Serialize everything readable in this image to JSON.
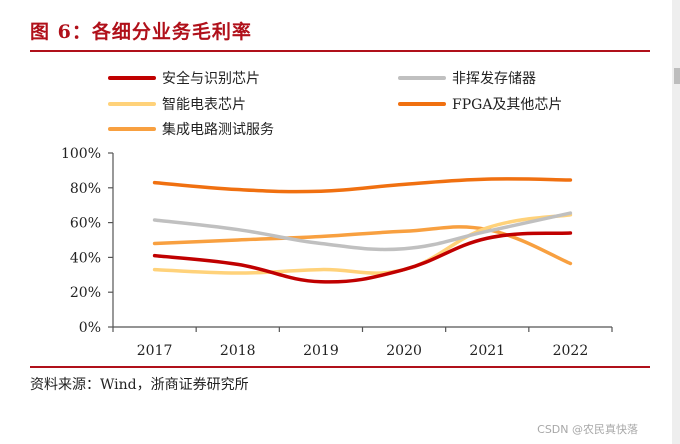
{
  "figure": {
    "title": "图 6：各细分业务毛利率",
    "source": "资料来源：Wind，浙商证券研究所",
    "watermark": "CSDN @农民真快落",
    "accent_color": "#b0101a"
  },
  "chart_data": {
    "type": "line",
    "title": "图 6：各细分业务毛利率",
    "xlabel": "",
    "ylabel": "",
    "x": [
      "2017",
      "2018",
      "2019",
      "2020",
      "2021",
      "2022"
    ],
    "ylim": [
      0,
      100
    ],
    "yticks": [
      "0%",
      "20%",
      "40%",
      "60%",
      "80%",
      "100%"
    ],
    "ytick_values": [
      0,
      20,
      40,
      60,
      80,
      100
    ],
    "grid": false,
    "smooth": true,
    "legend_position": "top",
    "series": [
      {
        "name": "安全与识别芯片",
        "color": "#c00000",
        "values": [
          41,
          36,
          26,
          33,
          51,
          54
        ]
      },
      {
        "name": "非挥发存储器",
        "color": "#c0c0c0",
        "values": [
          61.5,
          56,
          48,
          45,
          55,
          65.5
        ]
      },
      {
        "name": "智能电表芯片",
        "color": "#ffd27a",
        "values": [
          33,
          31,
          33,
          33,
          57,
          64.5
        ]
      },
      {
        "name": "FPGA及其他芯片",
        "color": "#f07010",
        "values": [
          83,
          79,
          78,
          82,
          85,
          84.5
        ]
      },
      {
        "name": "集成电路测试服务",
        "color": "#f8a040",
        "values": [
          48,
          50,
          52,
          55,
          56,
          36.5
        ]
      }
    ]
  }
}
